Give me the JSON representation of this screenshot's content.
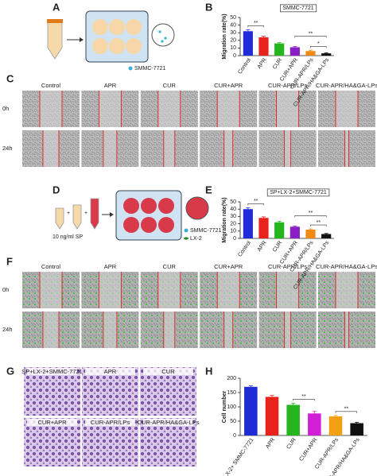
{
  "panel_labels": [
    "A",
    "B",
    "C",
    "D",
    "E",
    "F",
    "G",
    "H"
  ],
  "schematic_a": {
    "legend": "SMMC-7721"
  },
  "schematic_d": {
    "dose": "10 ng/ml SP",
    "legends": [
      "SMMC-7721",
      "LX-2"
    ]
  },
  "wound_c": {
    "columns": [
      "Control",
      "APR",
      "CUR",
      "CUR+APR",
      "CUR-APR/LPs",
      "CUR-APR/HA&GA-LPs"
    ],
    "rows": [
      "0h",
      "24h"
    ]
  },
  "wound_f": {
    "columns": [
      "Control",
      "APR",
      "CUR",
      "CUR+APR",
      "CUR-APR/LPs",
      "CUR-APR/HA&GA-LPs"
    ],
    "rows": [
      "0h",
      "24h"
    ]
  },
  "transwell_g": {
    "labels": [
      "SP+LX-2+SMMC-7721",
      "APR",
      "CUR",
      "CUR+APR",
      "CUR-APR/LPs",
      "CUR-APR/HA&GA-LPs"
    ]
  },
  "chart_data": [
    {
      "type": "bar",
      "title": "SMMC-7721",
      "y_label": "Migration rate(%)",
      "categories": [
        "Control",
        "APR",
        "CUR",
        "CUR+APR",
        "CUR-APR/LPs",
        "CUR-APR/HA&GA-LPs"
      ],
      "values": [
        32,
        24,
        16,
        11,
        6,
        3
      ],
      "errors": [
        2,
        1.5,
        1,
        1,
        1,
        0.8
      ],
      "colors": [
        "#1f2bd6",
        "#e8231c",
        "#25b51c",
        "#8a1fc4",
        "#f08a12",
        "#111111"
      ],
      "ylim": [
        0,
        50
      ],
      "yticks": [
        0,
        10,
        20,
        30,
        40,
        50
      ],
      "annotations": [
        "**",
        "**",
        "*"
      ]
    },
    {
      "type": "bar",
      "title": "SP+LX-2+SMMC-7721",
      "y_label": "Migration rate(%)",
      "categories": [
        "Control",
        "APR",
        "CUR",
        "CUR+APR",
        "CUR-APR/LPs",
        "CUR-APR/HA&GA-LPs"
      ],
      "values": [
        40,
        28,
        22,
        16,
        12,
        6
      ],
      "errors": [
        2,
        1.5,
        1.5,
        1,
        1,
        0.8
      ],
      "colors": [
        "#1f2bd6",
        "#e8231c",
        "#25b51c",
        "#8a1fc4",
        "#f08a12",
        "#111111"
      ],
      "ylim": [
        0,
        50
      ],
      "yticks": [
        0,
        10,
        20,
        30,
        40,
        50
      ],
      "annotations": [
        "**",
        "**",
        "**"
      ]
    },
    {
      "type": "bar",
      "y_label": "Cell number",
      "categories": [
        "SP+LX-2+ SMMC-7721",
        "APR",
        "CUR",
        "CUR+APR",
        "CUR-APR/LPs",
        "CUR-APR/HA&GA-LPs"
      ],
      "values": [
        170,
        135,
        107,
        77,
        67,
        43
      ],
      "errors": [
        4,
        5,
        6,
        7,
        3,
        3
      ],
      "colors": [
        "#1f2bd6",
        "#e8231c",
        "#25b51c",
        "#d21fd6",
        "#f0a012",
        "#111111"
      ],
      "ylim": [
        0,
        200
      ],
      "yticks": [
        0,
        50,
        100,
        150,
        200
      ],
      "annotations": [
        "**",
        "**"
      ]
    }
  ]
}
